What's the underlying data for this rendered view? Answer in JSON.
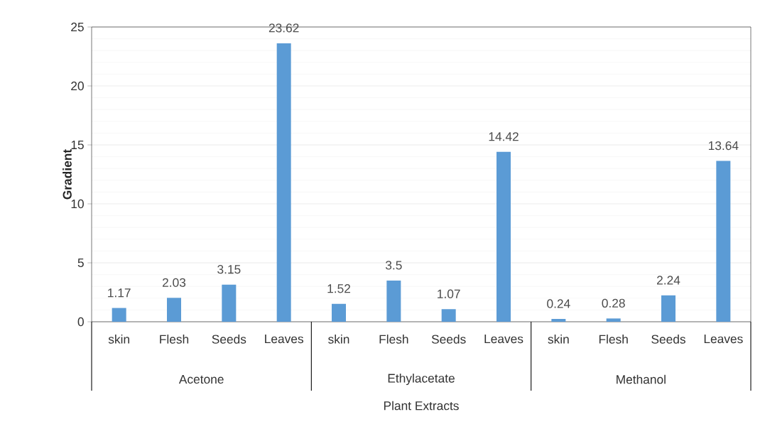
{
  "chart_data": {
    "type": "bar",
    "xlabel": "Plant Extracts",
    "ylabel": "Gradient",
    "categories": [
      "skin",
      "Flesh",
      "Seeds",
      "Leaves",
      "skin",
      "Flesh",
      "Seeds",
      "Leaves",
      "skin",
      "Flesh",
      "Seeds",
      "Leaves"
    ],
    "values": [
      1.17,
      2.03,
      3.15,
      23.62,
      1.52,
      3.5,
      1.07,
      14.42,
      0.24,
      0.28,
      2.24,
      13.64
    ],
    "color": "#5b9bd5",
    "annotations": [
      "Acetone",
      "Ethylacetate",
      "Methanol"
    ],
    "ylim": [
      0,
      25
    ],
    "yticks": [
      0,
      5,
      10,
      15,
      20,
      25
    ],
    "grid": "y",
    "data_labels": true
  }
}
